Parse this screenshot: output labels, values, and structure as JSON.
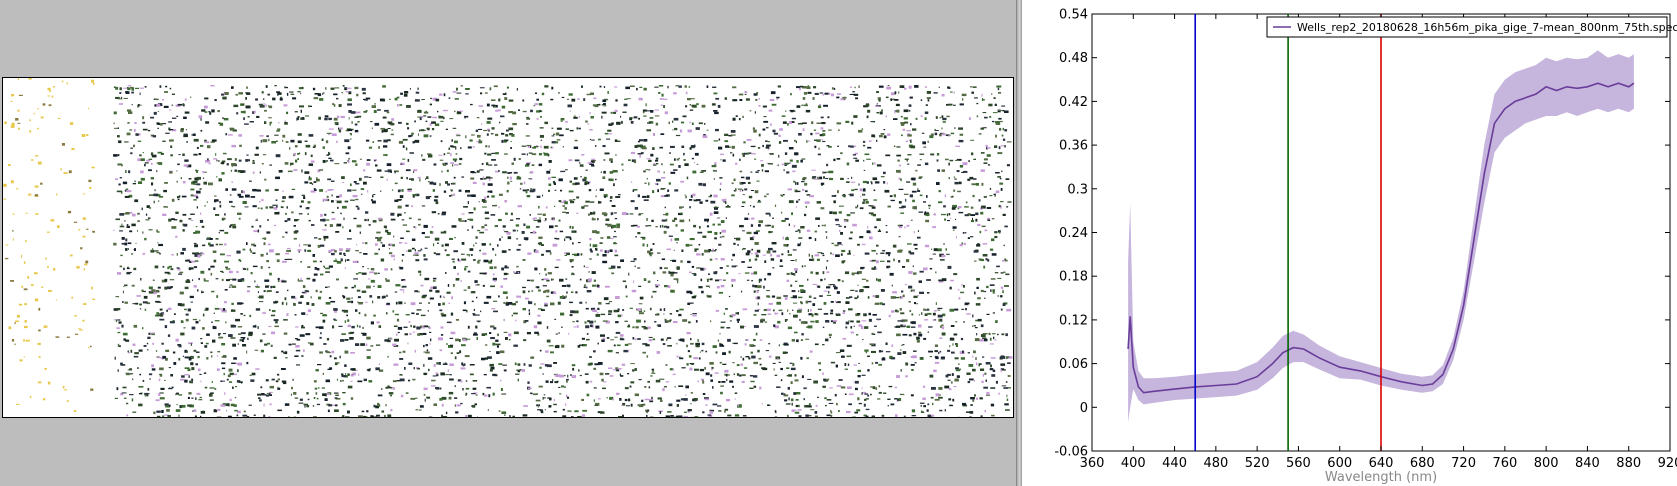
{
  "left_panel": {
    "background_color": "#bdbdbd",
    "image_description_icon": "hyperspectral-field-image"
  },
  "chart_data": {
    "type": "line",
    "title": "",
    "xlabel": "Wavelength (nm)",
    "ylabel": "",
    "xlim": [
      360,
      920
    ],
    "ylim": [
      -0.06,
      0.54
    ],
    "xticks": [
      360,
      400,
      440,
      480,
      520,
      560,
      600,
      640,
      680,
      720,
      760,
      800,
      840,
      880,
      920
    ],
    "xtick_labels": [
      "360",
      "400",
      "440",
      "480",
      "520",
      "560",
      "600",
      "640",
      "680",
      "720",
      "760",
      "800",
      "840",
      "880",
      "920"
    ],
    "yticks": [
      -0.06,
      0,
      0.06,
      0.12,
      0.18,
      0.24,
      0.3,
      0.36,
      0.42,
      0.48,
      0.54
    ],
    "ytick_labels": [
      "-0.06",
      "0",
      "0.06",
      "0.12",
      "0.18",
      "0.24",
      "0.3",
      "0.36",
      "0.42",
      "0.48",
      "0.54"
    ],
    "grid": false,
    "legend_position": "top-right",
    "series": [
      {
        "name": "Wells_rep2_20180628_16h56m_pika_gige_7-mean_800nm_75th.spec",
        "color": "#6a3d9a",
        "band_color": "#b39cd0",
        "x": [
          395,
          397,
          400,
          405,
          410,
          420,
          440,
          460,
          480,
          500,
          520,
          535,
          545,
          555,
          565,
          580,
          600,
          620,
          640,
          660,
          680,
          690,
          700,
          710,
          720,
          730,
          740,
          750,
          760,
          770,
          780,
          790,
          800,
          810,
          820,
          830,
          840,
          850,
          860,
          870,
          880,
          885
        ],
        "y": [
          0.08,
          0.125,
          0.055,
          0.028,
          0.02,
          0.022,
          0.025,
          0.028,
          0.03,
          0.032,
          0.042,
          0.06,
          0.075,
          0.082,
          0.08,
          0.068,
          0.055,
          0.05,
          0.042,
          0.035,
          0.03,
          0.032,
          0.045,
          0.08,
          0.14,
          0.23,
          0.32,
          0.39,
          0.41,
          0.42,
          0.425,
          0.43,
          0.44,
          0.435,
          0.44,
          0.438,
          0.44,
          0.445,
          0.44,
          0.445,
          0.44,
          0.445
        ],
        "upper": [
          0.2,
          0.28,
          0.09,
          0.05,
          0.04,
          0.04,
          0.042,
          0.045,
          0.048,
          0.05,
          0.062,
          0.082,
          0.098,
          0.105,
          0.1,
          0.085,
          0.07,
          0.062,
          0.054,
          0.046,
          0.042,
          0.044,
          0.058,
          0.095,
          0.16,
          0.26,
          0.36,
          0.43,
          0.45,
          0.46,
          0.465,
          0.47,
          0.48,
          0.475,
          0.48,
          0.478,
          0.48,
          0.49,
          0.48,
          0.485,
          0.48,
          0.485
        ],
        "lower": [
          -0.02,
          0.0,
          0.025,
          0.01,
          0.004,
          0.006,
          0.01,
          0.012,
          0.014,
          0.016,
          0.024,
          0.04,
          0.054,
          0.062,
          0.062,
          0.052,
          0.04,
          0.038,
          0.03,
          0.024,
          0.02,
          0.022,
          0.032,
          0.065,
          0.12,
          0.2,
          0.28,
          0.35,
          0.37,
          0.38,
          0.39,
          0.395,
          0.4,
          0.4,
          0.405,
          0.4,
          0.405,
          0.41,
          0.405,
          0.41,
          0.405,
          0.41
        ]
      }
    ],
    "vertical_lines": [
      {
        "x": 460,
        "color": "#0000cc",
        "label": "blue"
      },
      {
        "x": 550,
        "color": "#006400",
        "label": "green"
      },
      {
        "x": 640,
        "color": "#dd0000",
        "label": "red"
      }
    ]
  }
}
